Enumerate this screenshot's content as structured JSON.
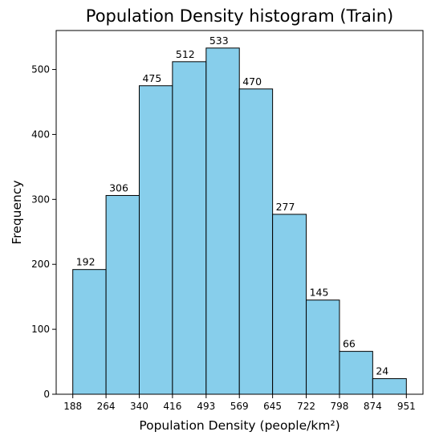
{
  "chart_data": {
    "type": "bar",
    "title": "Population Density histogram (Train)",
    "xlabel": "Population Density (people/km²)",
    "ylabel": "Frequency",
    "bin_edges": [
      188,
      264,
      340,
      416,
      493,
      569,
      645,
      722,
      798,
      874,
      951
    ],
    "x_tick_labels": [
      "188",
      "264",
      "340",
      "416",
      "493",
      "569",
      "645",
      "722",
      "798",
      "874",
      "951"
    ],
    "values": [
      192,
      306,
      475,
      512,
      533,
      470,
      277,
      145,
      66,
      24
    ],
    "data_labels": [
      "192",
      "306",
      "475",
      "512",
      "533",
      "470",
      "277",
      "145",
      "66",
      "24"
    ],
    "y_ticks": [
      0,
      100,
      200,
      300,
      400,
      500
    ],
    "ylim": [
      0,
      560
    ],
    "xlim": [
      150,
      989
    ],
    "grid": false,
    "colors": {
      "bar_fill": "#87ceeb",
      "bar_edge": "#000000"
    }
  }
}
